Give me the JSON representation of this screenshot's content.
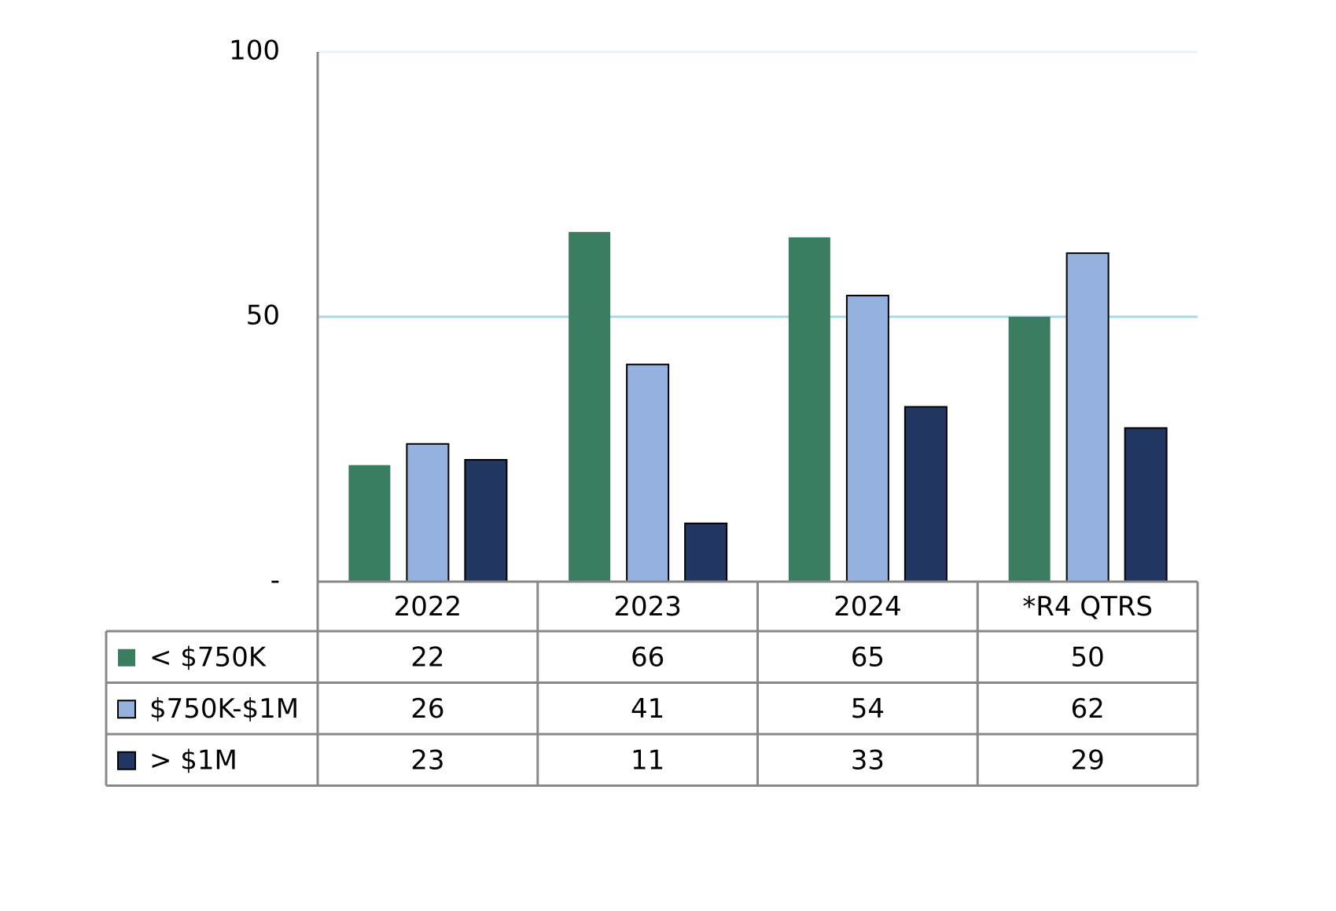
{
  "chart_data": {
    "type": "bar",
    "categories": [
      "2022",
      "2023",
      "2024",
      "*R4 QTRS"
    ],
    "series": [
      {
        "name": "< $750K",
        "color": "#3a7d60",
        "values": [
          22,
          66,
          65,
          50
        ]
      },
      {
        "name": "$750K-$1M",
        "color": "#95b1de",
        "edgecolor": "#000000",
        "values": [
          26,
          41,
          54,
          62
        ]
      },
      {
        "name": "> $1M",
        "color": "#213761",
        "edgecolor": "#000000",
        "values": [
          23,
          11,
          33,
          29
        ]
      }
    ],
    "ylim": [
      0,
      100
    ],
    "yticks": [
      {
        "value": 0,
        "label": "-"
      },
      50,
      100
    ],
    "grid": true,
    "grid_color": "#a9d8ea",
    "data_table": true
  }
}
